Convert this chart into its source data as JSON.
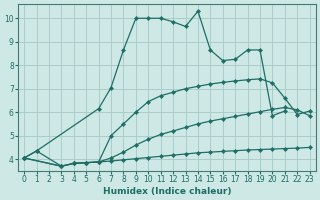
{
  "xlabel": "Humidex (Indice chaleur)",
  "background_color": "#cde8e5",
  "grid_color": "#aaccca",
  "line_color": "#1e6e66",
  "xlim": [
    -0.5,
    23.5
  ],
  "ylim": [
    3.5,
    10.6
  ],
  "xticks": [
    0,
    1,
    2,
    3,
    4,
    5,
    6,
    7,
    8,
    9,
    10,
    11,
    12,
    13,
    14,
    15,
    16,
    17,
    18,
    19,
    20,
    21,
    22,
    23
  ],
  "yticks": [
    4,
    5,
    6,
    7,
    8,
    9,
    10
  ],
  "series": [
    {
      "x": [
        0,
        1,
        3,
        4,
        5,
        6,
        7,
        8,
        9,
        10,
        11,
        12,
        13,
        14,
        15,
        16,
        17,
        18,
        19,
        20,
        21,
        22,
        23
      ],
      "y": [
        4.05,
        4.35,
        3.7,
        3.82,
        3.85,
        3.88,
        3.92,
        3.97,
        4.02,
        4.07,
        4.12,
        4.17,
        4.22,
        4.27,
        4.3,
        4.33,
        4.36,
        4.39,
        4.41,
        4.43,
        4.45,
        4.47,
        4.5
      ]
    },
    {
      "x": [
        0,
        3,
        4,
        5,
        6,
        7,
        8,
        9,
        10,
        11,
        12,
        13,
        14,
        15,
        16,
        17,
        18,
        19,
        20,
        21,
        22,
        23
      ],
      "y": [
        4.05,
        3.7,
        3.82,
        3.85,
        3.88,
        4.05,
        4.3,
        4.6,
        4.85,
        5.05,
        5.2,
        5.35,
        5.5,
        5.62,
        5.72,
        5.82,
        5.92,
        6.02,
        6.12,
        6.2,
        6.1,
        5.85
      ]
    },
    {
      "x": [
        0,
        3,
        4,
        5,
        6,
        7,
        8,
        9,
        10,
        11,
        12,
        13,
        14,
        15,
        16,
        17,
        18,
        19,
        20,
        21,
        22,
        23
      ],
      "y": [
        4.05,
        3.7,
        3.82,
        3.85,
        3.88,
        5.0,
        5.5,
        6.0,
        6.45,
        6.7,
        6.85,
        7.0,
        7.1,
        7.2,
        7.27,
        7.33,
        7.38,
        7.42,
        7.25,
        6.6,
        5.9,
        6.05
      ]
    },
    {
      "x": [
        0,
        1,
        6,
        7,
        8,
        9,
        10,
        11,
        12,
        13,
        14,
        15,
        16,
        17,
        18,
        19,
        20,
        21
      ],
      "y": [
        4.05,
        4.35,
        6.15,
        7.05,
        8.65,
        10.0,
        10.0,
        10.0,
        9.85,
        9.65,
        10.3,
        8.65,
        8.2,
        8.25,
        8.65,
        8.65,
        5.85,
        6.05
      ]
    }
  ]
}
